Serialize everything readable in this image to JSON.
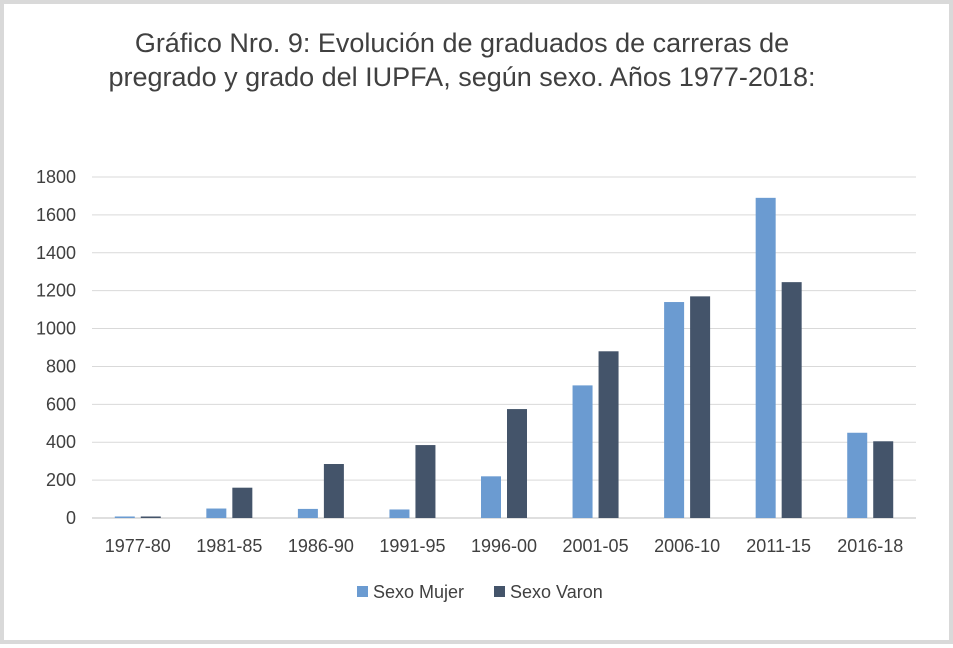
{
  "chart_data": {
    "type": "bar",
    "title": [
      "Gráfico Nro. 9: Evolución  de graduados de carreras de",
      "pregrado y grado del IUPFA, según sexo. Años 1977-2018:"
    ],
    "categories": [
      "1977-80",
      "1981-85",
      "1986-90",
      "1991-95",
      "1996-00",
      "2001-05",
      "2006-10",
      "2011-15",
      "2016-18"
    ],
    "series": [
      {
        "name": "Sexo Mujer",
        "color": "#6b9bd1",
        "values": [
          8,
          50,
          48,
          45,
          220,
          700,
          1140,
          1690,
          450
        ]
      },
      {
        "name": "Sexo Varon",
        "color": "#44546a",
        "values": [
          8,
          160,
          285,
          385,
          575,
          880,
          1170,
          1245,
          405
        ]
      }
    ],
    "ylim": [
      0,
      1800
    ],
    "yticks": [
      0,
      200,
      400,
      600,
      800,
      1000,
      1200,
      1400,
      1600,
      1800
    ],
    "grid": true,
    "legend": "bottom"
  }
}
